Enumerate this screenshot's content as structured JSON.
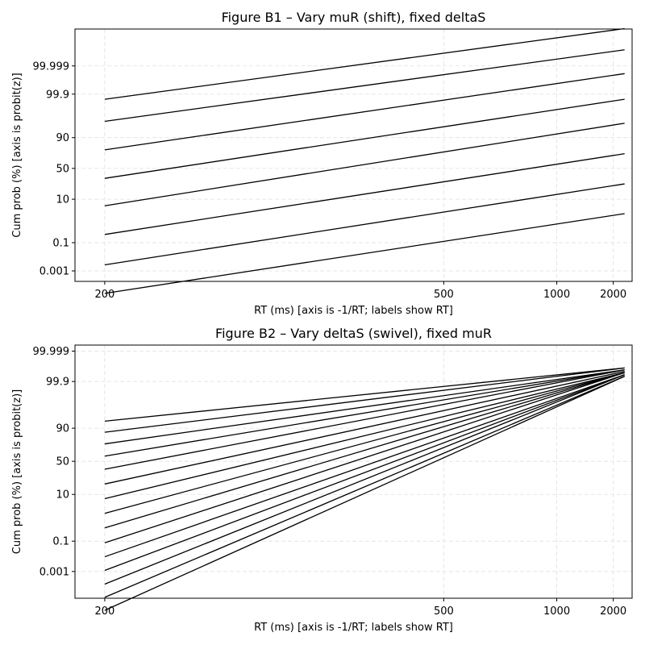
{
  "chart_data": [
    {
      "type": "line",
      "title": "Figure B1 – Vary muR (shift), fixed deltaS",
      "xlabel": "RT (ms)  [axis is -1/RT; labels show RT]",
      "ylabel": "Cum prob (%)  [axis is probit(z)]",
      "x_scale": "reciprocal",
      "y_scale": "probit",
      "grid": true,
      "xlim": [
        190,
        3000
      ],
      "x_ticks": [
        200,
        500,
        1000,
        2000
      ],
      "x_tick_labels": [
        "200",
        "500",
        "1000",
        "2000"
      ],
      "y_ticks": [
        0.001,
        0.1,
        10,
        50,
        90,
        99.9,
        99.999
      ],
      "y_tick_labels": [
        "0.001",
        "0.1",
        "10",
        "50",
        "90",
        "99.9",
        "99.999"
      ],
      "x": [
        200,
        2500
      ],
      "series": [
        {
          "values": [
            1e-05,
            3
          ]
        },
        {
          "values": [
            0.003,
            26
          ]
        },
        {
          "values": [
            0.3,
            73
          ]
        },
        {
          "values": [
            6,
            97
          ]
        },
        {
          "values": [
            34,
            99.8
          ]
        },
        {
          "values": [
            78,
            99.996
          ]
        },
        {
          "values": [
            97.5,
            99.99996
          ]
        },
        {
          "values": [
            99.8,
            99.9999997
          ]
        }
      ]
    },
    {
      "type": "line",
      "title": "Figure B2 – Vary deltaS (swivel), fixed muR",
      "xlabel": "RT (ms)  [axis is -1/RT; labels show RT]",
      "ylabel": "Cum prob (%)  [axis is probit(z)]",
      "x_scale": "reciprocal",
      "y_scale": "probit",
      "grid": true,
      "xlim": [
        190,
        3000
      ],
      "x_ticks": [
        200,
        500,
        1000,
        2000
      ],
      "x_tick_labels": [
        "200",
        "500",
        "1000",
        "2000"
      ],
      "y_ticks": [
        0.001,
        0.1,
        10,
        50,
        90,
        99.9,
        99.999
      ],
      "y_tick_labels": [
        "0.001",
        "0.1",
        "10",
        "50",
        "90",
        "99.9",
        "99.999"
      ],
      "x": [
        200,
        2500
      ],
      "series": [
        {
          "values": [
            4e-07,
            99.95
          ]
        },
        {
          "values": [
            7e-06,
            99.95
          ]
        },
        {
          "values": [
            0.0001,
            99.96
          ]
        },
        {
          "values": [
            0.0012,
            99.96
          ]
        },
        {
          "values": [
            0.011,
            99.96
          ]
        },
        {
          "values": [
            0.08,
            99.97
          ]
        },
        {
          "values": [
            0.5,
            99.97
          ]
        },
        {
          "values": [
            2.2,
            99.97
          ]
        },
        {
          "values": [
            7.4,
            99.97
          ]
        },
        {
          "values": [
            19,
            99.975
          ]
        },
        {
          "values": [
            38,
            99.98
          ]
        },
        {
          "values": [
            58,
            99.98
          ]
        },
        {
          "values": [
            75,
            99.98
          ]
        },
        {
          "values": [
            87,
            99.985
          ]
        },
        {
          "values": [
            94,
            99.985
          ]
        }
      ]
    }
  ]
}
